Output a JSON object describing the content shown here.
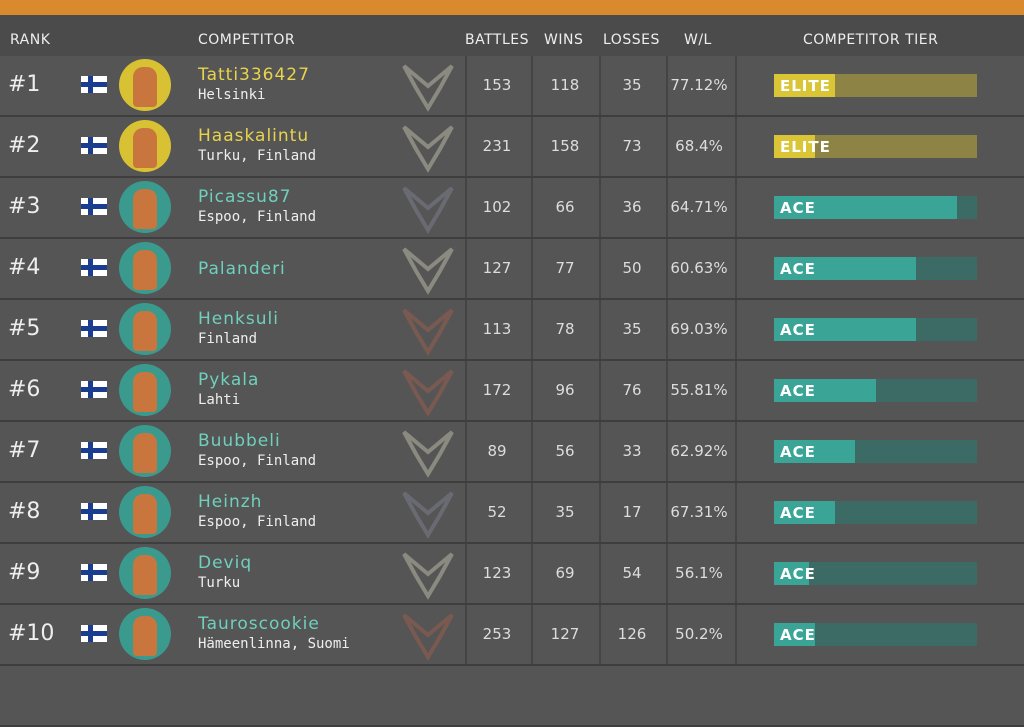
{
  "header": {
    "rank": "RANK",
    "competitor": "COMPETITOR",
    "battles": "BATTLES",
    "wins": "WINS",
    "losses": "LOSSES",
    "wl": "W/L",
    "tier": "COMPETITOR TIER"
  },
  "rows": [
    {
      "rank": "#1",
      "name": "Tatti336427",
      "location": "Helsinki",
      "battles": 153,
      "wins": 118,
      "losses": 35,
      "wl": "77.12%",
      "tier": "ELITE",
      "tier_progress": 30,
      "emblem_color": "#8a8a80"
    },
    {
      "rank": "#2",
      "name": "Haaskalintu",
      "location": "Turku, Finland",
      "battles": 231,
      "wins": 158,
      "losses": 73,
      "wl": "68.4%",
      "tier": "ELITE",
      "tier_progress": 20,
      "emblem_color": "#8a8a80"
    },
    {
      "rank": "#3",
      "name": "Picassu87",
      "location": "Espoo, Finland",
      "battles": 102,
      "wins": 66,
      "losses": 36,
      "wl": "64.71%",
      "tier": "ACE",
      "tier_progress": 90,
      "emblem_color": "#6a6a72"
    },
    {
      "rank": "#4",
      "name": "Palanderi",
      "battles": 127,
      "wins": 77,
      "losses": 50,
      "wl": "60.63%",
      "tier": "ACE",
      "tier_progress": 70,
      "emblem_color": "#8a8a80"
    },
    {
      "rank": "#5",
      "name": "Henksuli",
      "location": "Finland",
      "battles": 113,
      "wins": 78,
      "losses": 35,
      "wl": "69.03%",
      "tier": "ACE",
      "tier_progress": 70,
      "emblem_color": "#7a5a50"
    },
    {
      "rank": "#6",
      "name": "Pykala",
      "location": "Lahti",
      "battles": 172,
      "wins": 96,
      "losses": 76,
      "wl": "55.81%",
      "tier": "ACE",
      "tier_progress": 50,
      "emblem_color": "#7a5a50"
    },
    {
      "rank": "#7",
      "name": "Buubbeli",
      "location": "Espoo, Finland",
      "battles": 89,
      "wins": 56,
      "losses": 33,
      "wl": "62.92%",
      "tier": "ACE",
      "tier_progress": 40,
      "emblem_color": "#8a8a80"
    },
    {
      "rank": "#8",
      "name": "Heinzh",
      "location": "Espoo, Finland",
      "battles": 52,
      "wins": 35,
      "losses": 17,
      "wl": "67.31%",
      "tier": "ACE",
      "tier_progress": 30,
      "emblem_color": "#6a6a72"
    },
    {
      "rank": "#9",
      "name": "Deviq",
      "location": "Turku",
      "battles": 123,
      "wins": 69,
      "losses": 54,
      "wl": "56.1%",
      "tier": "ACE",
      "tier_progress": 17,
      "emblem_color": "#8a8a80"
    },
    {
      "rank": "#10",
      "name": "Tauroscookie",
      "location": "Hämeenlinna, Suomi",
      "battles": 253,
      "wins": 127,
      "losses": 126,
      "wl": "50.2%",
      "tier": "ACE",
      "tier_progress": 20,
      "emblem_color": "#7a5a50"
    }
  ]
}
